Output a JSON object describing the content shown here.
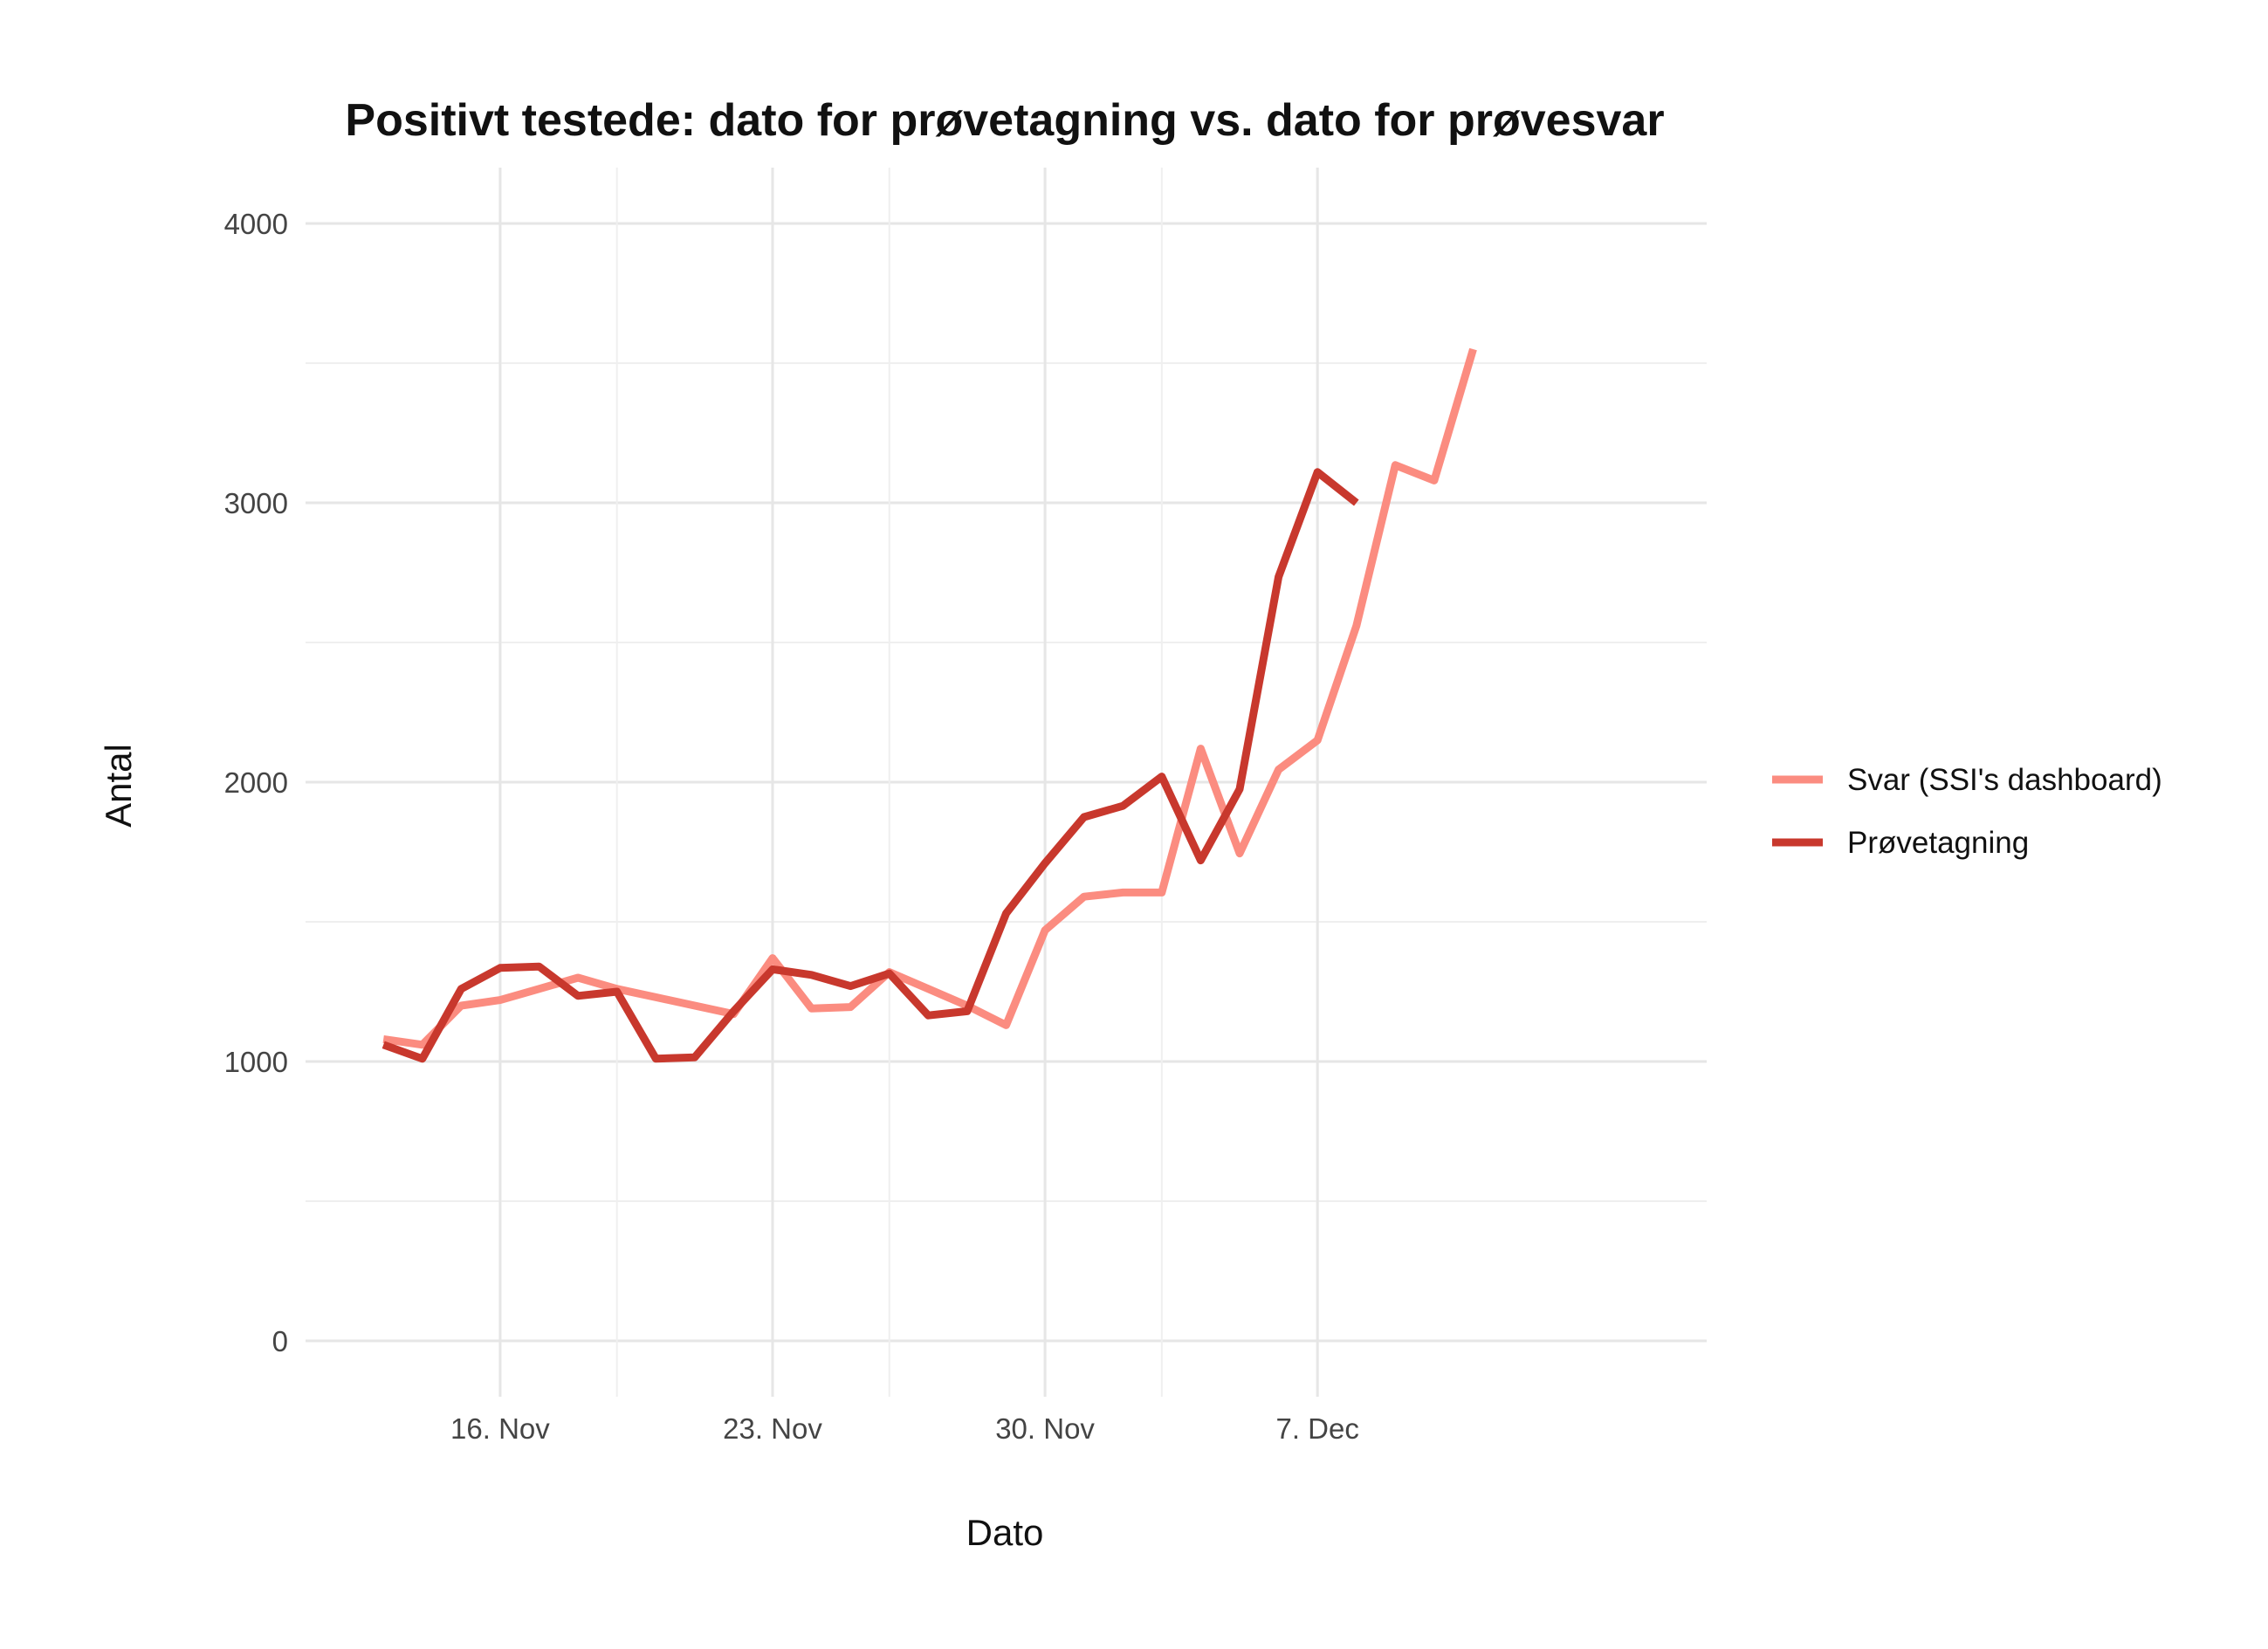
{
  "chart_data": {
    "type": "line",
    "title": "Positivt testede: dato for prøvetagning vs. dato for prøvesvar",
    "xlabel": "Dato",
    "ylabel": "Antal",
    "x_tick_labels": [
      "16. Nov",
      "23. Nov",
      "30. Nov",
      "7. Dec"
    ],
    "x_tick_dates": [
      "2020-11-16",
      "2020-11-23",
      "2020-11-30",
      "2020-12-07"
    ],
    "xlim": [
      "2020-11-11",
      "2020-12-17"
    ],
    "y_ticks": [
      0,
      1000,
      2000,
      3000,
      4000
    ],
    "ylim": [
      -200,
      4200
    ],
    "grid": true,
    "legend_position": "right",
    "series": [
      {
        "name": "Svar (SSI's dashboard)",
        "color": "#fb8c80",
        "points": [
          [
            "2020-11-13",
            1080
          ],
          [
            "2020-11-14",
            1060
          ],
          [
            "2020-11-15",
            1200
          ],
          [
            "2020-11-16",
            1220
          ],
          [
            "2020-11-17",
            1260
          ],
          [
            "2020-11-18",
            1300
          ],
          [
            "2020-11-19",
            1260
          ],
          [
            "2020-11-20",
            1230
          ],
          [
            "2020-11-21",
            1200
          ],
          [
            "2020-11-22",
            1170
          ],
          [
            "2020-11-23",
            1370
          ],
          [
            "2020-11-24",
            1190
          ],
          [
            "2020-11-25",
            1195
          ],
          [
            "2020-11-26",
            1320
          ],
          [
            "2020-11-27",
            1260
          ],
          [
            "2020-11-28",
            1200
          ],
          [
            "2020-11-29",
            1130
          ],
          [
            "2020-11-30",
            1470
          ],
          [
            "2020-12-01",
            1590
          ],
          [
            "2020-12-02",
            1605
          ],
          [
            "2020-12-03",
            1605
          ],
          [
            "2020-12-04",
            2120
          ],
          [
            "2020-12-05",
            1745
          ],
          [
            "2020-12-06",
            2045
          ],
          [
            "2020-12-07",
            2150
          ],
          [
            "2020-12-08",
            2560
          ],
          [
            "2020-12-09",
            3135
          ],
          [
            "2020-12-10",
            3080
          ],
          [
            "2020-12-11",
            3550
          ]
        ]
      },
      {
        "name": "Prøvetagning",
        "color": "#c8382d",
        "points": [
          [
            "2020-11-13",
            1060
          ],
          [
            "2020-11-14",
            1010
          ],
          [
            "2020-11-15",
            1260
          ],
          [
            "2020-11-16",
            1335
          ],
          [
            "2020-11-17",
            1340
          ],
          [
            "2020-11-18",
            1235
          ],
          [
            "2020-11-19",
            1250
          ],
          [
            "2020-11-20",
            1010
          ],
          [
            "2020-11-21",
            1015
          ],
          [
            "2020-11-22",
            1180
          ],
          [
            "2020-11-23",
            1330
          ],
          [
            "2020-11-24",
            1310
          ],
          [
            "2020-11-25",
            1270
          ],
          [
            "2020-11-26",
            1315
          ],
          [
            "2020-11-27",
            1165
          ],
          [
            "2020-11-28",
            1180
          ],
          [
            "2020-11-29",
            1530
          ],
          [
            "2020-11-30",
            1710
          ],
          [
            "2020-12-01",
            1875
          ],
          [
            "2020-12-02",
            1915
          ],
          [
            "2020-12-03",
            2020
          ],
          [
            "2020-12-04",
            1720
          ],
          [
            "2020-12-05",
            1975
          ],
          [
            "2020-12-06",
            2735
          ],
          [
            "2020-12-07",
            3110
          ],
          [
            "2020-12-08",
            3000
          ]
        ]
      }
    ]
  }
}
